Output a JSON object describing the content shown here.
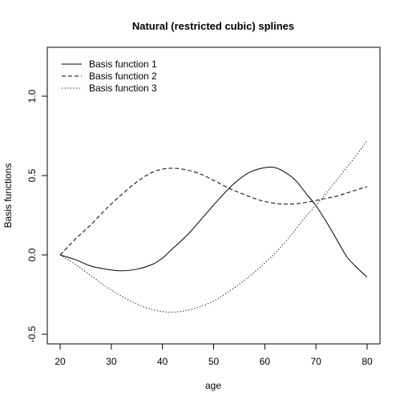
{
  "chart_data": {
    "type": "line",
    "title": "Natural (restricted cubic) splines",
    "xlabel": "age",
    "ylabel": "Basis functions",
    "xlim": [
      20,
      80
    ],
    "ylim": [
      -0.5,
      1.2
    ],
    "x_ticks": [
      20,
      30,
      40,
      50,
      60,
      70,
      80
    ],
    "y_ticks": [
      -0.5,
      0.0,
      0.5,
      1.0
    ],
    "y_tick_labels": [
      "-0.5",
      "0.0",
      "0.5",
      "1.0"
    ],
    "grid": false,
    "legend_position": "top-left",
    "series": [
      {
        "name": "Basis function 1",
        "line_style": "solid",
        "x": [
          20,
          23,
          26,
          29,
          32,
          35,
          38,
          40,
          42,
          45,
          48,
          51,
          54,
          57,
          60,
          62,
          64,
          66,
          68,
          70,
          72,
          74,
          76,
          78,
          80
        ],
        "y": [
          0.0,
          -0.03,
          -0.07,
          -0.09,
          -0.1,
          -0.09,
          -0.06,
          -0.02,
          0.04,
          0.13,
          0.24,
          0.35,
          0.45,
          0.52,
          0.55,
          0.55,
          0.52,
          0.47,
          0.39,
          0.31,
          0.21,
          0.1,
          -0.01,
          -0.08,
          -0.14
        ]
      },
      {
        "name": "Basis function 2",
        "line_style": "dashed",
        "x": [
          20,
          23,
          26,
          29,
          32,
          35,
          38,
          41,
          44,
          47,
          50,
          53,
          56,
          59,
          62,
          65,
          68,
          71,
          74,
          77,
          80
        ],
        "y": [
          0.0,
          0.1,
          0.19,
          0.29,
          0.38,
          0.46,
          0.52,
          0.545,
          0.54,
          0.515,
          0.47,
          0.42,
          0.38,
          0.345,
          0.325,
          0.32,
          0.33,
          0.35,
          0.37,
          0.4,
          0.43
        ]
      },
      {
        "name": "Basis function 3",
        "line_style": "dotted",
        "x": [
          20,
          23,
          26,
          29,
          32,
          35,
          38,
          41,
          44,
          47,
          50,
          53,
          56,
          59,
          62,
          65,
          68,
          71,
          74,
          77,
          80
        ],
        "y": [
          0.0,
          -0.06,
          -0.13,
          -0.2,
          -0.26,
          -0.31,
          -0.345,
          -0.36,
          -0.355,
          -0.33,
          -0.29,
          -0.23,
          -0.16,
          -0.08,
          0.01,
          0.12,
          0.24,
          0.35,
          0.47,
          0.59,
          0.72
        ]
      }
    ]
  }
}
